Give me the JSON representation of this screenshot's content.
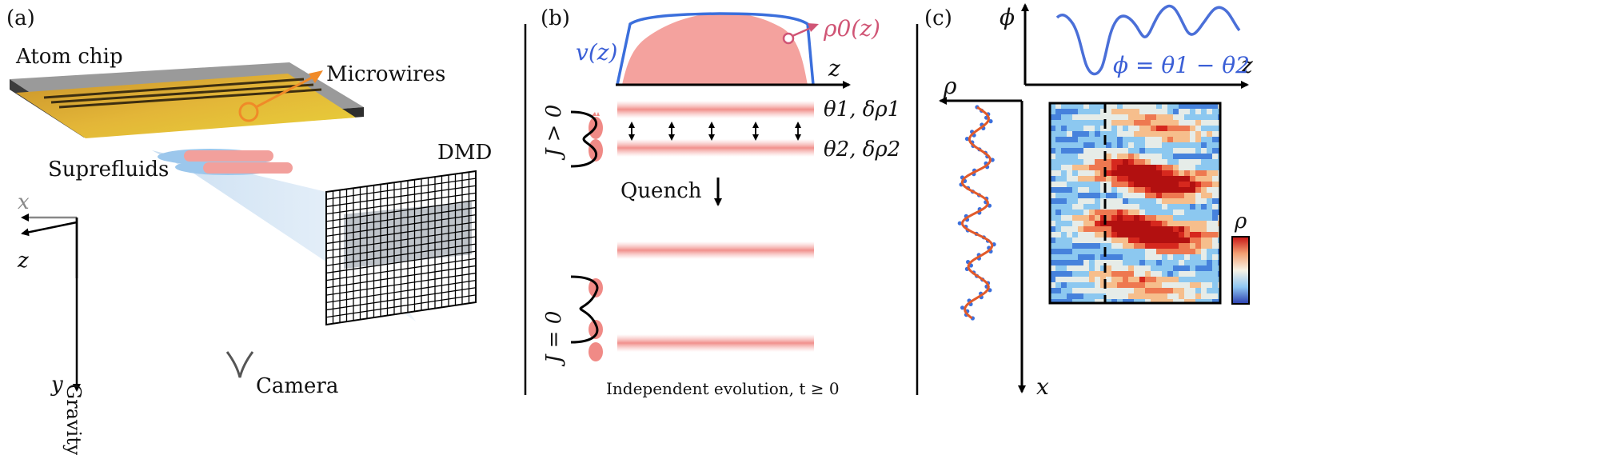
{
  "panel_a": {
    "label": "(a)",
    "atom_chip": "Atom chip",
    "microwires": "Microwires",
    "superfluids": "Suprefluids",
    "dmd": "DMD",
    "axis_x": "x",
    "axis_z": "z",
    "axis_y": "y",
    "gravity": "Gravity",
    "camera": "Camera"
  },
  "panel_b": {
    "label": "(b)",
    "v_label": "v(z)",
    "rho0_label": "ρ0(z)",
    "rho0_sub": "0",
    "z_label": "z",
    "j_pos": "J > 0",
    "j_zero": "J = 0",
    "theta1": "θ1, δρ1",
    "theta2": "θ2, δρ2",
    "quench": "Quench",
    "independent": "Independent evolution, t ≥ 0"
  },
  "panel_c": {
    "label": "(c)",
    "phi_axis": "ϕ",
    "z_axis": "z",
    "phi_eq": "ϕ = θ1 − θ2",
    "rho_axis": "ρ",
    "x_axis": "x",
    "colorbar_label": "ρ"
  },
  "colors": {
    "blue": "#3b6fdc",
    "pink": "#f29a96",
    "gold": "#d9a92a",
    "orange": "#f08a28"
  }
}
